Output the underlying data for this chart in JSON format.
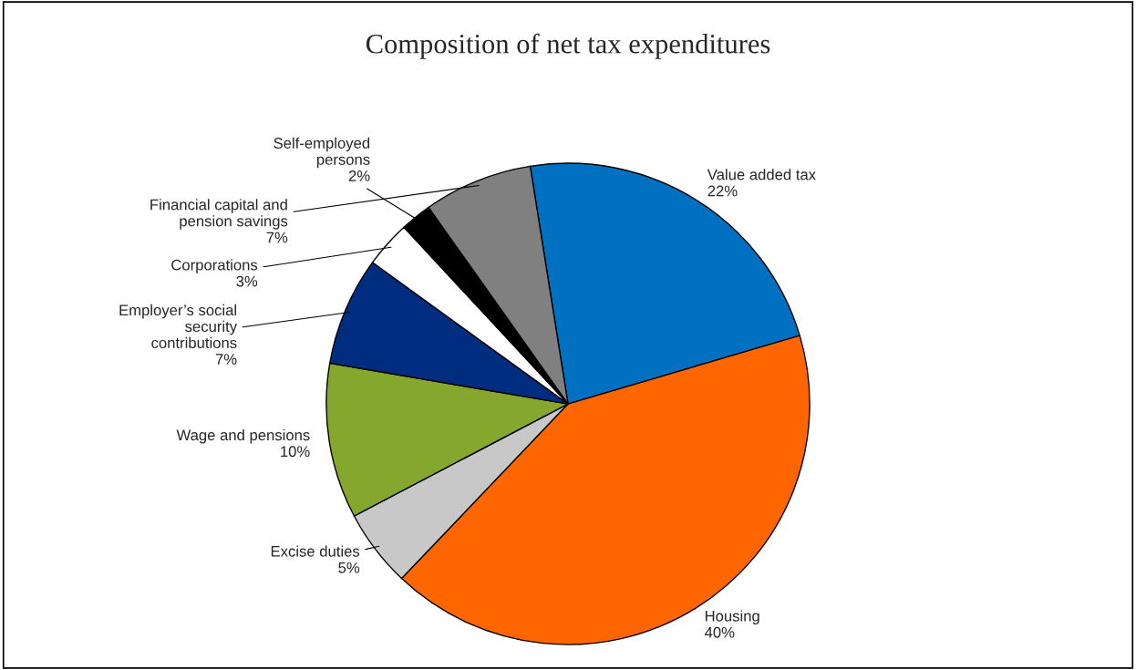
{
  "chart_data": {
    "type": "pie",
    "title": "Composition of net tax expenditures",
    "categories": [
      "Value added tax",
      "Housing",
      "Excise duties",
      "Wage and pensions",
      "Employer’s social\nsecurity\ncontributions",
      "Corporations",
      "Self-employed\npersons",
      "Financial capital and\npension savings"
    ],
    "values": [
      22,
      40,
      5,
      10,
      7,
      3,
      2,
      7
    ],
    "value_labels": [
      "22%",
      "40%",
      "5%",
      "10%",
      "7%",
      "3%",
      "2%",
      "7%"
    ],
    "colors": [
      "#0070c0",
      "#ff6600",
      "#c8c8c8",
      "#86a72d",
      "#002d80",
      "#ffffff",
      "#000000",
      "#808080"
    ],
    "legend": false
  }
}
